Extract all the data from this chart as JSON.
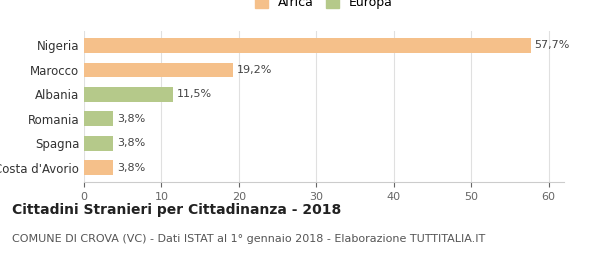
{
  "categories": [
    "Costa d'Avorio",
    "Spagna",
    "Romania",
    "Albania",
    "Marocco",
    "Nigeria"
  ],
  "values": [
    3.8,
    3.8,
    3.8,
    11.5,
    19.2,
    57.7
  ],
  "labels": [
    "3,8%",
    "3,8%",
    "3,8%",
    "11,5%",
    "19,2%",
    "57,7%"
  ],
  "colors": [
    "#f5c08a",
    "#b5c98a",
    "#b5c98a",
    "#b5c98a",
    "#f5c08a",
    "#f5c08a"
  ],
  "legend_africa_color": "#f5c08a",
  "legend_europa_color": "#b5c98a",
  "title": "Cittadini Stranieri per Cittadinanza - 2018",
  "subtitle": "COMUNE DI CROVA (VC) - Dati ISTAT al 1° gennaio 2018 - Elaborazione TUTTITALIA.IT",
  "xlim": [
    0,
    62
  ],
  "xticks": [
    0,
    10,
    20,
    30,
    40,
    50,
    60
  ],
  "background_color": "#ffffff",
  "bar_edge_color": "none",
  "title_fontsize": 10,
  "subtitle_fontsize": 8,
  "label_fontsize": 8,
  "ytick_fontsize": 8.5,
  "xtick_fontsize": 8
}
